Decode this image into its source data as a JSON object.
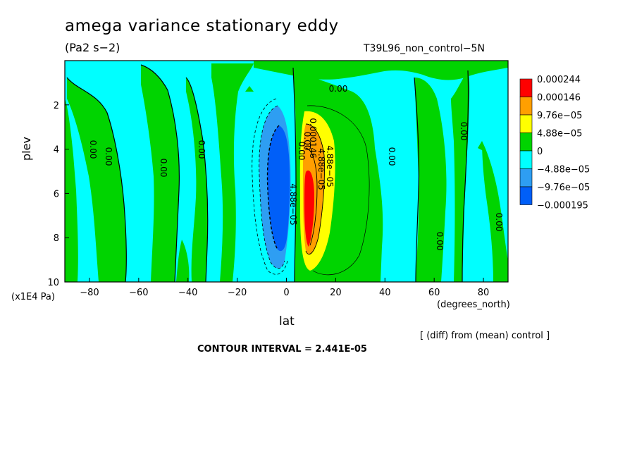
{
  "colors": {
    "background": "#ffffff",
    "pos_low": "#00d400",
    "pos_mid": "#ffff00",
    "pos_high": "#ff9f00",
    "pos_max": "#ff0000",
    "neg_low": "#00ffff",
    "neg_mid": "#2e9ef2",
    "neg_max": "#005ff8"
  },
  "chart_data": {
    "type": "contour",
    "title": "amega variance stationary eddy",
    "units": "(Pa2 s−2)",
    "run_label": "T39L96_non_control−5N",
    "xlabel": "lat",
    "xlabel_units": "(degrees_north)",
    "ylabel": "plev",
    "ylabel_units": "(x1E4 Pa)",
    "xlim": [
      -90,
      90
    ],
    "ylim": [
      10,
      0
    ],
    "x_ticks": [
      -80,
      -60,
      -40,
      -20,
      0,
      20,
      40,
      60,
      80
    ],
    "y_ticks": [
      2,
      4,
      6,
      8,
      10
    ],
    "note": "[ (diff) from (mean) control ]",
    "contour_interval": "CONTOUR INTERVAL = 2.441E-05",
    "legend": [
      {
        "label": "0.000244",
        "color": "#ff0000"
      },
      {
        "label": "0.000146",
        "color": "#ff9f00"
      },
      {
        "label": "9.76e−05",
        "color": "#ffff00"
      },
      {
        "label": "4.88e−05",
        "color": "#00d400"
      },
      {
        "label": "0",
        "color": "#00ffff"
      },
      {
        "label": "−4.88e−05",
        "color": "#2e9ef2"
      },
      {
        "label": "−9.76e−05",
        "color": "#005ff8"
      },
      {
        "label": "−0.000195",
        "color": ""
      }
    ],
    "contour_labels": [
      "0.00",
      "0.00",
      "0.00",
      "0.00",
      "0.00",
      "0.00",
      "0.00",
      "0.00",
      "0.00",
      "0.00",
      "4.88e−05",
      "4.88e−05",
      "4.88e−05",
      "0.00",
      "0.000146"
    ],
    "regions": [
      {
        "name": "dipole-negative-core",
        "lat": [
          -10,
          2
        ],
        "plev": [
          3.0,
          9.2
        ],
        "min_value": -0.000195
      },
      {
        "name": "dipole-positive-core",
        "lat": [
          5,
          20
        ],
        "plev": [
          2.4,
          9.4
        ],
        "max_value": 0.000244
      }
    ]
  }
}
